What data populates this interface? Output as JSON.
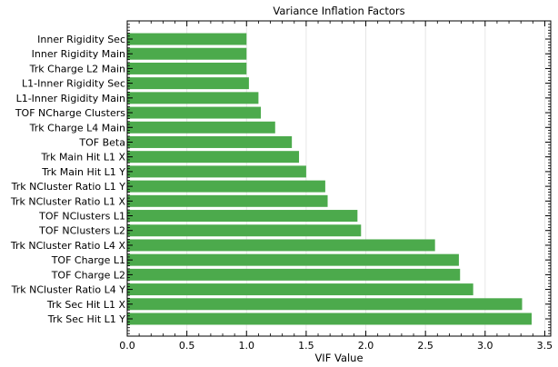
{
  "chart_data": {
    "type": "bar",
    "orientation": "horizontal",
    "title": "Variance Inflation Factors",
    "xlabel": "VIF Value",
    "ylabel": "",
    "xlim": [
      0,
      3.55
    ],
    "xticks": [
      0.0,
      0.5,
      1.0,
      1.5,
      2.0,
      2.5,
      3.0,
      3.5
    ],
    "xtick_labels": [
      "0.0",
      "0.5",
      "1.0",
      "1.5",
      "2.0",
      "2.5",
      "3.0",
      "3.5"
    ],
    "grid": "x-axis vertical lines",
    "bar_color": "#4caa4c",
    "categories": [
      "Inner Rigidity Sec",
      "Inner Rigidity Main",
      "Trk Charge L2 Main",
      "L1-Inner Rigidity Sec",
      "L1-Inner Rigidity Main",
      "TOF NCharge Clusters",
      "Trk Charge L4 Main",
      "TOF Beta",
      "Trk Main Hit L1 X",
      "Trk Main Hit L1 Y",
      "Trk NCluster Ratio L1 Y",
      "Trk NCluster Ratio L1 X",
      "TOF NClusters L1",
      "TOF NClusters L2",
      "Trk NCluster Ratio L4 X",
      "TOF Charge L1",
      "TOF Charge L2",
      "Trk NCluster Ratio L4 Y",
      "Trk Sec Hit L1 X",
      "Trk Sec Hit L1 Y"
    ],
    "values": [
      1.0,
      1.0,
      1.0,
      1.02,
      1.1,
      1.12,
      1.24,
      1.38,
      1.44,
      1.5,
      1.66,
      1.68,
      1.93,
      1.96,
      2.58,
      2.78,
      2.79,
      2.9,
      3.31,
      3.39
    ]
  }
}
